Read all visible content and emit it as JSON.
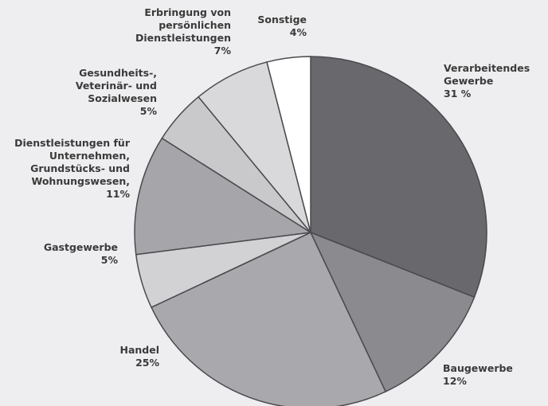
{
  "chart_data": {
    "type": "pie",
    "categories": [
      "Verarbeitendes\nGewerbe",
      "Baugewerbe",
      "Handel",
      "Gastgewerbe",
      "Dienstleistungen für\nUnternehmen,\nGrundstücks- und\nWohnungswesen,",
      "Gesundheits-,\nVeterinär- und\nSozialwesen",
      "Erbringung von\npersönlichen\nDienstleistungen",
      "Sonstige"
    ],
    "values": [
      31,
      12,
      25,
      5,
      11,
      5,
      7,
      4
    ],
    "value_labels": [
      "31 %",
      "12%",
      "25%",
      "5%",
      "11%",
      "5%",
      "7%",
      "4%"
    ],
    "colors": [
      "#69696d",
      "#8b8b8f",
      "#a9a9ad",
      "#d2d2d5",
      "#a6a6aa",
      "#c9c9cc",
      "#d9d9db",
      "#ffffff"
    ]
  }
}
